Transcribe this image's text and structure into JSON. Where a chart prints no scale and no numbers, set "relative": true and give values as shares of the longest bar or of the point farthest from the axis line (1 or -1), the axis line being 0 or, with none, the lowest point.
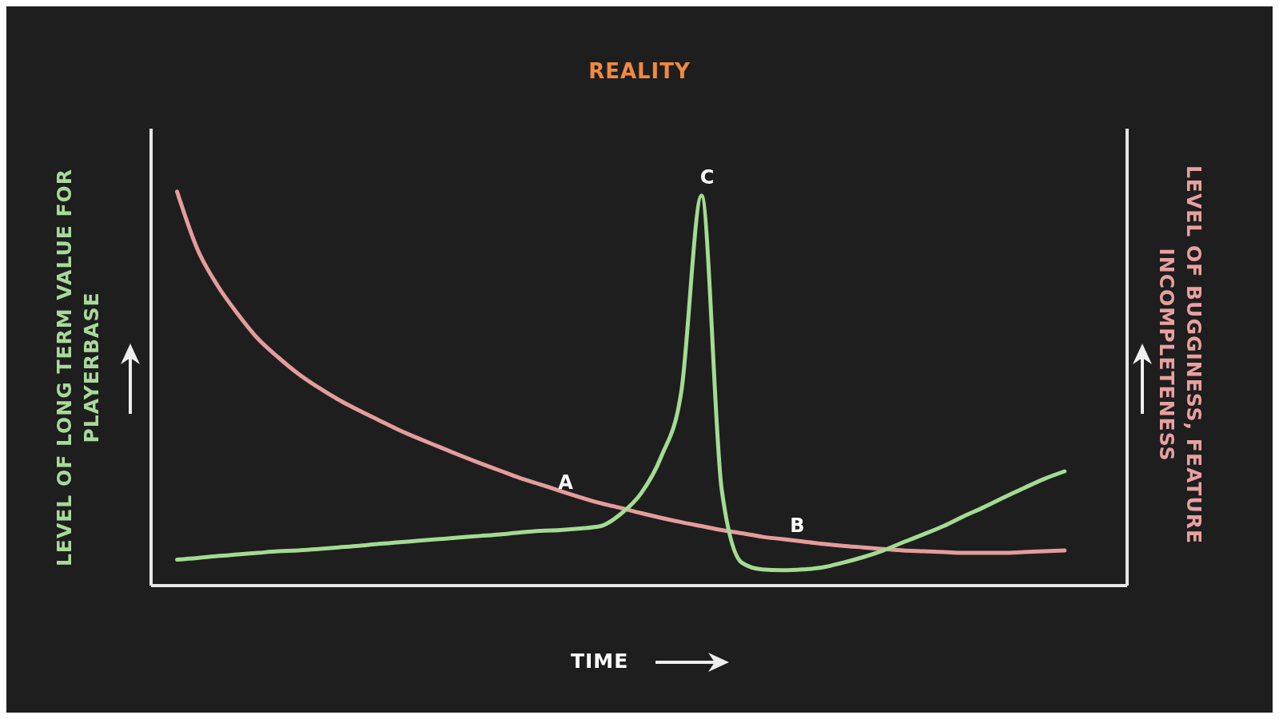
{
  "chart_data": {
    "type": "line",
    "title": "REALITY",
    "xlabel": "TIME",
    "ylabel": "LEVEL OF LONG TERM VALUE FOR PLAYERBASE",
    "y2label": "LEVEL OF BUGGINESS, FEATURE INCOMPLETENESS",
    "relative": true,
    "categories": [
      null,
      null,
      null,
      null,
      null,
      null,
      null,
      null,
      null,
      null,
      null,
      null,
      null,
      null,
      null,
      null,
      null,
      null,
      null,
      null,
      null,
      null,
      null,
      null,
      null,
      null,
      null,
      null,
      null,
      null,
      null,
      null,
      null,
      null,
      null,
      null,
      null,
      null,
      null,
      null,
      null,
      null,
      null,
      null,
      null
    ],
    "series": [
      {
        "color": "#e59c9c",
        "values": [
          1.0,
          0.855,
          0.762,
          0.69,
          0.627,
          0.58,
          0.538,
          0.503,
          0.472,
          0.445,
          0.42,
          0.395,
          0.373,
          0.352,
          0.331,
          0.311,
          0.292,
          0.273,
          0.257,
          0.24,
          0.224,
          0.209,
          0.197,
          0.184,
          0.172,
          0.161,
          0.151,
          0.141,
          0.133,
          0.124,
          0.118,
          0.112,
          0.106,
          0.101,
          0.097,
          0.093,
          0.089,
          0.087,
          0.085,
          0.083,
          0.083,
          0.083,
          0.085,
          0.087,
          0.089
        ]
      },
      {
        "color": "#a3db93",
        "values": [
          0.066,
          0.07,
          0.075,
          0.079,
          0.083,
          0.087,
          0.089,
          0.093,
          0.097,
          0.101,
          0.106,
          0.11,
          0.114,
          0.118,
          0.122,
          0.126,
          0.13,
          0.135,
          0.139,
          0.141,
          0.145,
          0.151,
          0.182,
          0.234,
          0.327,
          0.493,
          0.99,
          0.244,
          0.058,
          0.041,
          0.039,
          0.041,
          0.046,
          0.058,
          0.072,
          0.089,
          0.11,
          0.13,
          0.151,
          0.176,
          0.199,
          0.224,
          0.248,
          0.271,
          0.29
        ]
      }
    ],
    "annotations": [
      "A",
      "B",
      "C"
    ]
  }
}
